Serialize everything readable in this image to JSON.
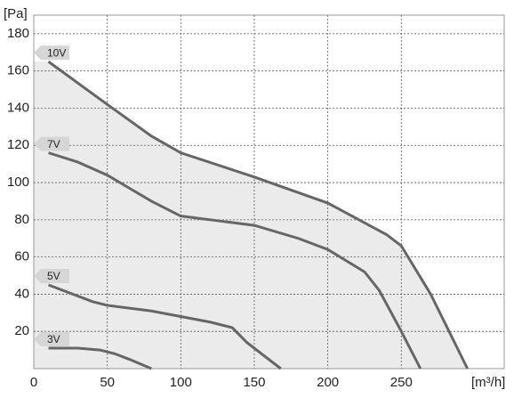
{
  "chart_data": {
    "type": "line",
    "y_label": "[Pa]",
    "x_label": "[m³/h]",
    "xlim": [
      0,
      320
    ],
    "ylim": [
      0,
      190
    ],
    "xticks": [
      0,
      50,
      100,
      150,
      200,
      250
    ],
    "yticks": [
      20,
      40,
      60,
      80,
      100,
      120,
      140,
      160,
      180
    ],
    "grid": true,
    "fill_color": "#ebebeb",
    "fill_series": 0,
    "series": [
      {
        "name": "10V",
        "color": "#666666",
        "x": [
          10,
          50,
          80,
          100,
          150,
          200,
          240,
          250,
          270,
          295
        ],
        "values": [
          165,
          142,
          125,
          116,
          103,
          89,
          72,
          66,
          40,
          0
        ]
      },
      {
        "name": "7V",
        "color": "#666666",
        "x": [
          10,
          30,
          50,
          80,
          100,
          130,
          150,
          180,
          200,
          225,
          235,
          250,
          263
        ],
        "values": [
          116,
          111,
          104,
          90,
          82,
          79,
          77,
          70,
          64,
          52,
          42,
          20,
          0
        ]
      },
      {
        "name": "5V",
        "color": "#666666",
        "x": [
          10,
          40,
          50,
          80,
          100,
          120,
          135,
          145,
          168
        ],
        "values": [
          45,
          36,
          34,
          31,
          28,
          25,
          22,
          14,
          0
        ]
      },
      {
        "name": "3V",
        "color": "#666666",
        "x": [
          10,
          20,
          30,
          45,
          55,
          65,
          80
        ],
        "values": [
          11,
          11,
          11,
          10,
          8,
          5,
          0
        ]
      }
    ]
  }
}
